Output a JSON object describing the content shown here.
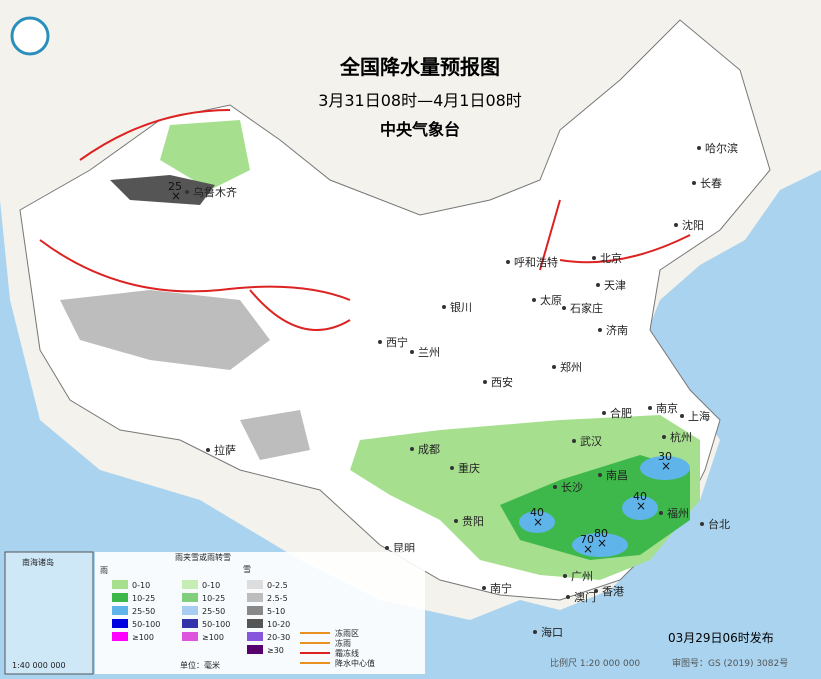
{
  "header": {
    "title": "全国降水量预报图",
    "period": "3月31日08时—4月1日08时",
    "agency": "中央气象台"
  },
  "cities": [
    "哈尔滨",
    "长春",
    "沈阳",
    "乌鲁木齐",
    "呼和浩特",
    "北京",
    "天津",
    "太原",
    "石家庄",
    "济南",
    "银川",
    "西宁",
    "兰州",
    "郑州",
    "西安",
    "合肥",
    "南京",
    "上海",
    "杭州",
    "武汉",
    "成都",
    "拉萨",
    "重庆",
    "长沙",
    "南昌",
    "福州",
    "台北",
    "贵阳",
    "昆明",
    "广州",
    "南宁",
    "澳门",
    "香港",
    "海口"
  ],
  "centers": [
    "25",
    "30",
    "40",
    "40",
    "70",
    "80"
  ],
  "legend": {
    "rain": {
      "title": "雨",
      "levels": [
        "0-10",
        "10-25",
        "25-50",
        "50-100",
        "≥100"
      ]
    },
    "sleet": {
      "title": "雨夹雪或雨转雪",
      "levels": [
        "0-10",
        "10-25",
        "25-50",
        "50-100",
        "≥100"
      ]
    },
    "snow": {
      "title": "雪",
      "levels": [
        "0-2.5",
        "2.5-5",
        "5-10",
        "10-20",
        "20-30",
        "≥30"
      ]
    },
    "unit": "单位：毫米",
    "symbols": [
      "冻雨区",
      "冻雨",
      "霜冻线",
      "降水中心值"
    ]
  },
  "inset": {
    "title": "南海诸岛",
    "scale": "1:40 000 000"
  },
  "footer": {
    "issued": "03月29日06时发布",
    "scale": "比例尺 1:20 000 000",
    "approval": "审图号：GS (2019) 3082号"
  }
}
